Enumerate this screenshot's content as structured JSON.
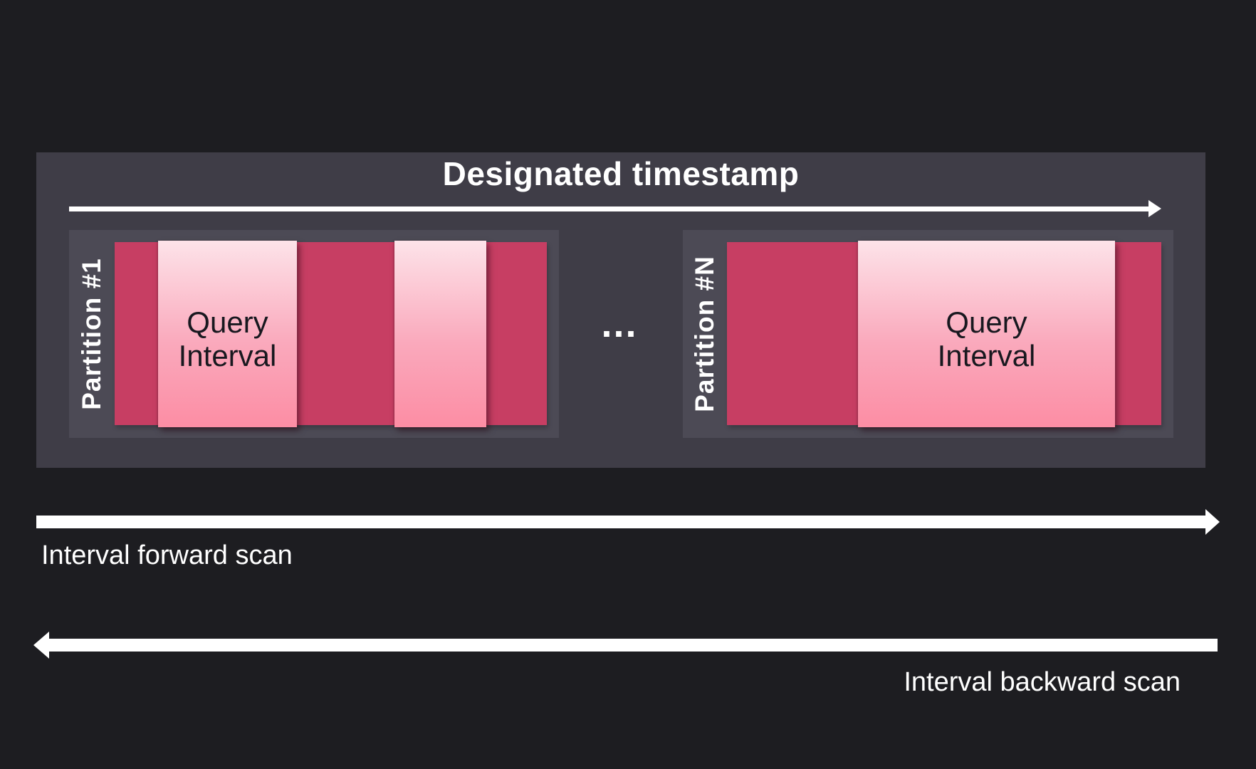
{
  "colors": {
    "background": "#1d1d21",
    "panel": "#3f3d47",
    "partition": "#4c4a55",
    "crimson": "#c73e63",
    "pink_top": "#fde3e9",
    "pink_mid": "#faa9bc",
    "pink_bottom": "#fc8da4",
    "arrow_white": "#ffffff",
    "label_white": "#ffffff",
    "query_text": "#18181f"
  },
  "panel": {
    "title": "Designated timestamp"
  },
  "partitions": [
    {
      "label": "Partition #1",
      "intervals": [
        {
          "label": "Query\nInterval"
        },
        {
          "label": ""
        }
      ]
    },
    {
      "label": "Partition #N",
      "intervals": [
        {
          "label": "Query\nInterval"
        }
      ]
    }
  ],
  "separator": "...",
  "scans": {
    "forward_label": "Interval forward scan",
    "backward_label": "Interval backward scan"
  }
}
